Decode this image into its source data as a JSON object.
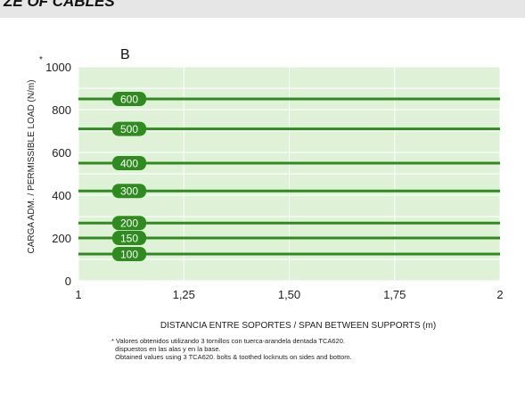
{
  "header": {
    "title_fragment": "ZE OF CABLES"
  },
  "chart_data": {
    "type": "line",
    "panel_label": "B",
    "xlabel": "DISTANCIA ENTRE SOPORTES / SPAN BETWEEN SUPPORTS (m)",
    "ylabel": "CARGA ADM. / PERMISSIBLE LOAD (N/m)",
    "ylabel_mark": "*",
    "xlim": [
      1,
      2
    ],
    "ylim": [
      0,
      1000
    ],
    "x_ticks": [
      1,
      1.25,
      1.5,
      1.75,
      2
    ],
    "x_tick_labels": [
      "1",
      "1,25",
      "1,50",
      "1,75",
      "2"
    ],
    "y_ticks": [
      0,
      200,
      400,
      600,
      800,
      1000
    ],
    "y_tick_labels": [
      "0",
      "200",
      "400",
      "600",
      "800",
      "1000"
    ],
    "grid": true,
    "colors": {
      "background": "#dff2d8",
      "grid": "#ffffff",
      "line": "#2e8b1e",
      "badge": "#2e8b1e"
    },
    "series": [
      {
        "name": "600",
        "x": [
          1,
          2
        ],
        "y": [
          850,
          850
        ]
      },
      {
        "name": "500",
        "x": [
          1,
          2
        ],
        "y": [
          710,
          710
        ]
      },
      {
        "name": "400",
        "x": [
          1,
          2
        ],
        "y": [
          550,
          550
        ]
      },
      {
        "name": "300",
        "x": [
          1,
          2
        ],
        "y": [
          420,
          420
        ]
      },
      {
        "name": "200",
        "x": [
          1,
          2
        ],
        "y": [
          270,
          270
        ]
      },
      {
        "name": "150",
        "x": [
          1,
          2
        ],
        "y": [
          200,
          200
        ]
      },
      {
        "name": "100",
        "x": [
          1,
          2
        ],
        "y": [
          125,
          125
        ]
      }
    ]
  },
  "notes": [
    "* Valores obtenidos utilizando 3 tornillos con tuerca-arandela dentada TCA620.",
    "  dispuestos en las alas y en la base.",
    "  Obtained values using 3 TCA620. bolts & toothed locknuts on sides and bottom."
  ]
}
